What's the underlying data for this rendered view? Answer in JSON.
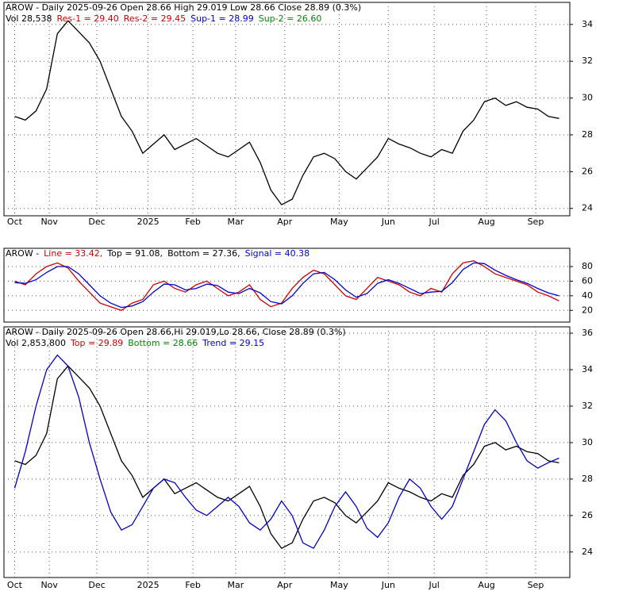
{
  "chart_data": [
    {
      "type": "line",
      "title": "AROW - Daily 2025-09-26 Open 28.66  High 29.019  Low 28.66  Close 28.89 (0.3%)",
      "annotations": [
        {
          "text": "Vol 28,538",
          "color": "#000000"
        },
        {
          "text": "Res-1 = 29.40",
          "color": "#cc0000"
        },
        {
          "text": "Res-2 = 29.45",
          "color": "#cc0000"
        },
        {
          "text": "Sup-1 = 28.99",
          "color": "#0000cc"
        },
        {
          "text": "Sup-2 = 26.60",
          "color": "#008800"
        }
      ],
      "xlim": [
        -1,
        52
      ],
      "xticks": [
        {
          "value": 0,
          "label": "Oct"
        },
        {
          "value": 3.25,
          "label": "Nov"
        },
        {
          "value": 7.7,
          "label": "Dec"
        },
        {
          "value": 12.5,
          "label": "2025"
        },
        {
          "value": 16.7,
          "label": "Feb"
        },
        {
          "value": 20.7,
          "label": "Mar"
        },
        {
          "value": 25.3,
          "label": "Apr"
        },
        {
          "value": 30.4,
          "label": "May"
        },
        {
          "value": 35,
          "label": "Jun"
        },
        {
          "value": 39.3,
          "label": "Jul"
        },
        {
          "value": 44.2,
          "label": "Aug"
        },
        {
          "value": 48.8,
          "label": "Sep"
        }
      ],
      "ylim": [
        23.6,
        35.2
      ],
      "yticks": [
        24,
        26,
        28,
        30,
        32,
        34
      ],
      "grid": true,
      "series": [
        {
          "color": "#000000",
          "values": [
            29.0,
            28.8,
            29.3,
            30.5,
            33.5,
            34.2,
            33.6,
            33.0,
            32.0,
            30.5,
            29.0,
            28.2,
            27.0,
            27.5,
            28.0,
            27.2,
            27.5,
            27.8,
            27.4,
            27.0,
            26.8,
            27.2,
            27.6,
            26.5,
            25.0,
            24.2,
            24.5,
            25.8,
            26.8,
            27.0,
            26.7,
            26.0,
            25.6,
            26.2,
            26.8,
            27.8,
            27.5,
            27.3,
            27.0,
            26.8,
            27.2,
            27.0,
            28.2,
            28.8,
            29.8,
            30.0,
            29.6,
            29.8,
            29.5,
            29.4,
            29.0,
            28.89
          ]
        }
      ]
    },
    {
      "type": "line",
      "title": "AROW -",
      "annotations": [
        {
          "text": "Line = 33.42,",
          "color": "#cc0000"
        },
        {
          "text": "Top = 91.08,",
          "color": "#000000"
        },
        {
          "text": "Bottom = 27.36,",
          "color": "#000000"
        },
        {
          "text": "Signal = 40.38",
          "color": "#0000cc"
        }
      ],
      "xlim": [
        -1,
        52
      ],
      "ylim": [
        4,
        105
      ],
      "yticks": [
        20,
        40,
        60,
        80
      ],
      "grid": true,
      "series": [
        {
          "color": "#cc0000",
          "values": [
            60,
            55,
            70,
            80,
            85,
            78,
            60,
            45,
            30,
            25,
            20,
            30,
            35,
            55,
            60,
            50,
            45,
            55,
            60,
            50,
            40,
            45,
            55,
            35,
            25,
            30,
            50,
            65,
            75,
            70,
            55,
            40,
            35,
            50,
            65,
            60,
            55,
            45,
            40,
            50,
            45,
            70,
            85,
            88,
            80,
            70,
            65,
            60,
            55,
            45,
            40,
            33
          ]
        },
        {
          "color": "#0000cc",
          "values": [
            58,
            57,
            62,
            72,
            80,
            80,
            70,
            55,
            40,
            30,
            24,
            26,
            32,
            45,
            56,
            55,
            48,
            50,
            56,
            54,
            45,
            43,
            50,
            44,
            32,
            29,
            40,
            57,
            70,
            72,
            62,
            48,
            38,
            43,
            57,
            62,
            57,
            50,
            43,
            45,
            46,
            58,
            76,
            85,
            84,
            75,
            68,
            62,
            57,
            50,
            44,
            40
          ]
        }
      ]
    },
    {
      "type": "line",
      "title": "AROW - Daily 2025-09-26 Open 28.66,Hi 29.019,Lo 28.66, Close 28.89 (0.3%)",
      "annotations": [
        {
          "text": "Vol 2,853,800",
          "color": "#000000"
        },
        {
          "text": "Top = 29.89",
          "color": "#cc0000"
        },
        {
          "text": "Bottom = 28.66",
          "color": "#008800"
        },
        {
          "text": "Trend = 29.15",
          "color": "#0000cc"
        }
      ],
      "xlim": [
        -1,
        52
      ],
      "xticks": [
        {
          "value": 0,
          "label": "Oct"
        },
        {
          "value": 3.25,
          "label": "Nov"
        },
        {
          "value": 7.7,
          "label": "Dec"
        },
        {
          "value": 12.5,
          "label": "2025"
        },
        {
          "value": 16.7,
          "label": "Feb"
        },
        {
          "value": 20.7,
          "label": "Mar"
        },
        {
          "value": 25.3,
          "label": "Apr"
        },
        {
          "value": 30.4,
          "label": "May"
        },
        {
          "value": 35,
          "label": "Jun"
        },
        {
          "value": 39.3,
          "label": "Jul"
        },
        {
          "value": 44.2,
          "label": "Aug"
        },
        {
          "value": 48.8,
          "label": "Sep"
        }
      ],
      "ylim": [
        22.6,
        36.35
      ],
      "yticks": [
        24,
        26,
        28,
        30,
        32,
        34,
        36
      ],
      "grid": true,
      "series": [
        {
          "color": "#000000",
          "values": [
            29.0,
            28.8,
            29.3,
            30.5,
            33.5,
            34.2,
            33.6,
            33.0,
            32.0,
            30.5,
            29.0,
            28.2,
            27.0,
            27.5,
            28.0,
            27.2,
            27.5,
            27.8,
            27.4,
            27.0,
            26.8,
            27.2,
            27.6,
            26.5,
            25.0,
            24.2,
            24.5,
            25.8,
            26.8,
            27.0,
            26.7,
            26.0,
            25.6,
            26.2,
            26.8,
            27.8,
            27.5,
            27.3,
            27.0,
            26.8,
            27.2,
            27.0,
            28.2,
            28.8,
            29.8,
            30.0,
            29.6,
            29.8,
            29.5,
            29.4,
            29.0,
            28.89
          ]
        },
        {
          "color": "#0000cc",
          "values": [
            27.5,
            29.5,
            32.0,
            34.0,
            34.8,
            34.2,
            32.5,
            30.0,
            28.0,
            26.2,
            25.2,
            25.5,
            26.5,
            27.5,
            28.0,
            27.8,
            27.0,
            26.3,
            26.0,
            26.5,
            27.0,
            26.5,
            25.6,
            25.2,
            25.8,
            26.8,
            26.0,
            24.5,
            24.2,
            25.2,
            26.5,
            27.3,
            26.5,
            25.3,
            24.8,
            25.6,
            27.0,
            28.0,
            27.5,
            26.5,
            25.8,
            26.5,
            28.0,
            29.5,
            31.0,
            31.8,
            31.2,
            30.0,
            29.0,
            28.6,
            28.9,
            29.15
          ]
        }
      ]
    }
  ]
}
